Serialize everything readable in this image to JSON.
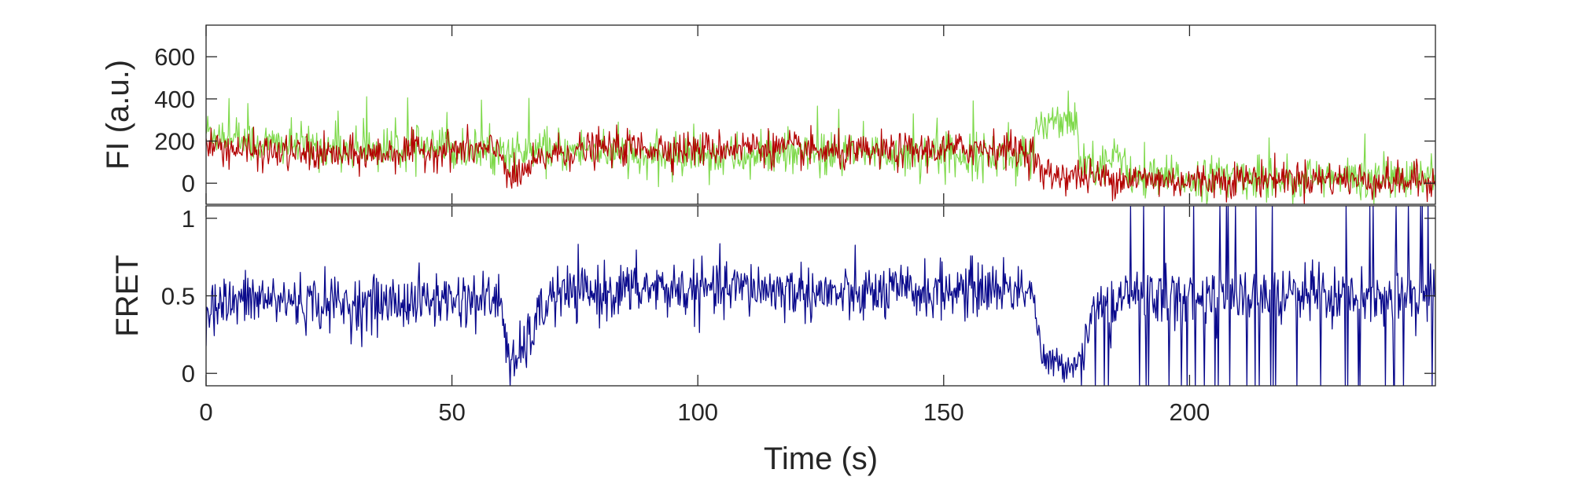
{
  "chart_data": [
    {
      "type": "line",
      "ylabel": "FI (a.u.)",
      "xlim": [
        0,
        250
      ],
      "ylim": [
        -100,
        750
      ],
      "yticks": [
        0,
        200,
        400,
        600
      ],
      "grid": false,
      "colors": {
        "donor": "#7ed94a",
        "acceptor": "#b30000"
      },
      "series": [
        {
          "color": "#7ed94a",
          "x": [
            0,
            10,
            20,
            30,
            40,
            50,
            60,
            62,
            70,
            80,
            90,
            100,
            110,
            120,
            130,
            140,
            150,
            160,
            168,
            170,
            175,
            177,
            178,
            185,
            187,
            188,
            200,
            210,
            220,
            230,
            240,
            250
          ],
          "y": [
            250,
            190,
            175,
            165,
            160,
            160,
            150,
            140,
            150,
            160,
            110,
            140,
            120,
            130,
            130,
            140,
            140,
            130,
            120,
            300,
            310,
            290,
            100,
            110,
            130,
            20,
            20,
            30,
            20,
            20,
            20,
            20
          ]
        },
        {
          "color": "#b30000",
          "x": [
            0,
            10,
            20,
            30,
            40,
            50,
            60,
            62,
            70,
            80,
            90,
            100,
            110,
            120,
            130,
            140,
            150,
            160,
            168,
            170,
            175,
            180,
            190,
            200,
            210,
            220,
            230,
            240,
            250
          ],
          "y": [
            180,
            150,
            140,
            130,
            150,
            160,
            150,
            10,
            140,
            165,
            170,
            160,
            175,
            160,
            140,
            150,
            160,
            170,
            150,
            40,
            40,
            30,
            20,
            10,
            20,
            25,
            20,
            10,
            10
          ]
        }
      ]
    },
    {
      "type": "line",
      "title": "",
      "ylabel": "FRET",
      "xlabel": "Time (s)",
      "xlim": [
        0,
        250
      ],
      "ylim": [
        -0.08,
        1.08
      ],
      "xticks": [
        0,
        50,
        100,
        150,
        200
      ],
      "yticks": [
        0,
        0.5,
        1
      ],
      "ytick_labels": [
        "0",
        "0.5",
        "1"
      ],
      "grid": false,
      "colors": {
        "fret": "#0a0a8c"
      },
      "series": [
        {
          "color": "#0a0a8c",
          "x": [
            0,
            10,
            20,
            30,
            40,
            50,
            60,
            62,
            70,
            80,
            90,
            100,
            110,
            120,
            130,
            140,
            150,
            160,
            168,
            170,
            175,
            178,
            180,
            190,
            200,
            210,
            220,
            230,
            240,
            250
          ],
          "y": [
            0.42,
            0.48,
            0.46,
            0.44,
            0.46,
            0.48,
            0.47,
            0.0,
            0.5,
            0.52,
            0.55,
            0.53,
            0.55,
            0.53,
            0.5,
            0.52,
            0.53,
            0.55,
            0.55,
            0.08,
            0.05,
            0.1,
            0.4,
            0.5,
            0.5,
            0.5,
            0.5,
            0.5,
            0.5,
            0.5
          ]
        }
      ]
    }
  ]
}
